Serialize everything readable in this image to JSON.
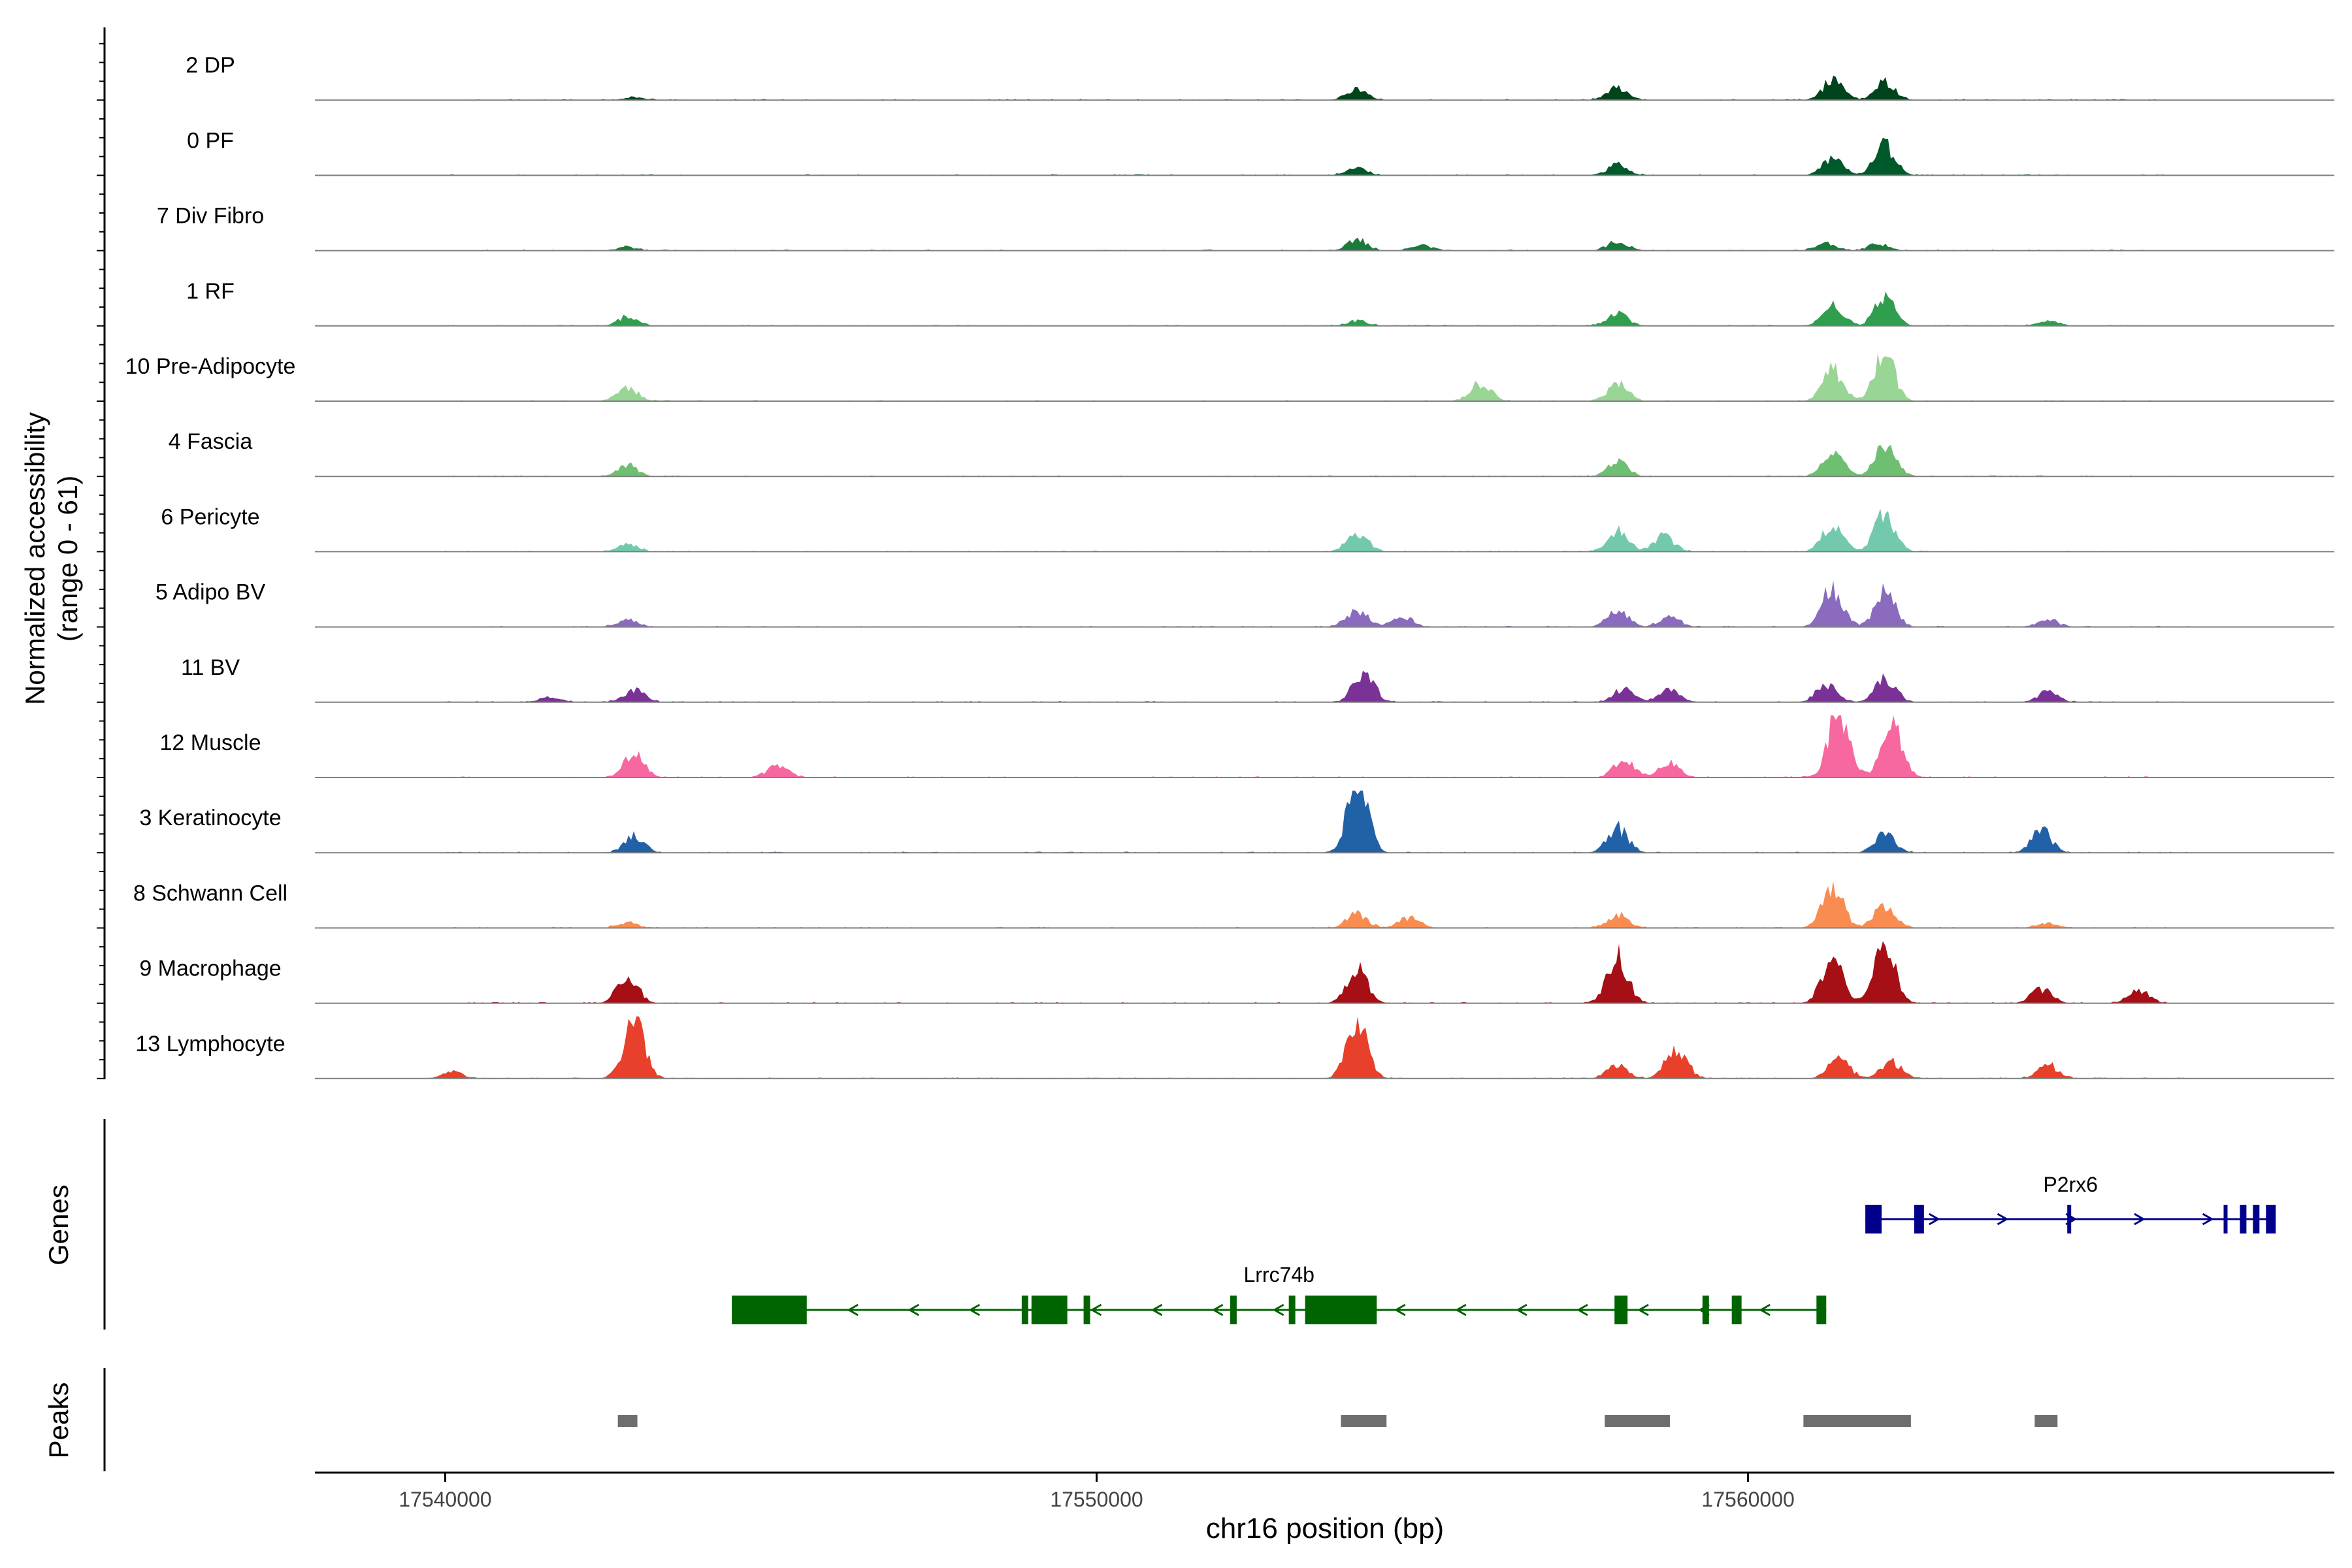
{
  "chart_data": {
    "type": "area",
    "title": "",
    "xlabel": "chr16 position (bp)",
    "ylabel": [
      "Normalized accessibility",
      "(range 0 - 61)"
    ],
    "ylim": [
      0,
      61
    ],
    "xlim": [
      17538000,
      17569000
    ],
    "x_ticks": [
      17540000,
      17550000,
      17560000
    ],
    "x_tick_labels": [
      "17540000",
      "17550000",
      "17560000"
    ],
    "tracks": [
      {
        "name": "2 DP",
        "color": "#00441b",
        "peaks": [
          [
            17542900,
            1.5
          ],
          [
            17554000,
            7
          ],
          [
            17558000,
            7
          ],
          [
            17561300,
            11
          ],
          [
            17562100,
            10
          ]
        ]
      },
      {
        "name": "0 PF",
        "color": "#00592b",
        "peaks": [
          [
            17554000,
            4
          ],
          [
            17558000,
            6
          ],
          [
            17561300,
            10
          ],
          [
            17562100,
            17
          ]
        ]
      },
      {
        "name": "7 Div Fibro",
        "color": "#1a7a3a",
        "peaks": [
          [
            17542800,
            2
          ],
          [
            17554000,
            6
          ],
          [
            17555000,
            3
          ],
          [
            17558000,
            5
          ],
          [
            17561200,
            4
          ],
          [
            17562000,
            4
          ]
        ]
      },
      {
        "name": "1 RF",
        "color": "#2f9e4f",
        "peaks": [
          [
            17542800,
            5
          ],
          [
            17554000,
            3
          ],
          [
            17558000,
            7
          ],
          [
            17561300,
            11
          ],
          [
            17562100,
            16
          ],
          [
            17564600,
            3
          ]
        ]
      },
      {
        "name": "10 Pre-Adipocyte",
        "color": "#99d595",
        "peaks": [
          [
            17542800,
            8
          ],
          [
            17555900,
            10
          ],
          [
            17558000,
            10
          ],
          [
            17561300,
            18
          ],
          [
            17562100,
            26
          ]
        ]
      },
      {
        "name": "4 Fascia",
        "color": "#6fbf72",
        "peaks": [
          [
            17542800,
            6
          ],
          [
            17558000,
            8
          ],
          [
            17561300,
            16
          ],
          [
            17562100,
            18
          ]
        ]
      },
      {
        "name": "6 Pericyte",
        "color": "#73c9ad",
        "peaks": [
          [
            17542800,
            4
          ],
          [
            17554000,
            11
          ],
          [
            17558000,
            12
          ],
          [
            17558700,
            9
          ],
          [
            17561300,
            16
          ],
          [
            17562100,
            22
          ]
        ]
      },
      {
        "name": "5 Adipo BV",
        "color": "#8b6bbd",
        "peaks": [
          [
            17542800,
            4
          ],
          [
            17554000,
            10
          ],
          [
            17554700,
            6
          ],
          [
            17558000,
            10
          ],
          [
            17558800,
            6
          ],
          [
            17561300,
            22
          ],
          [
            17562100,
            20
          ],
          [
            17564600,
            4
          ]
        ]
      },
      {
        "name": "11 BV",
        "color": "#7b3296",
        "peaks": [
          [
            17541600,
            3
          ],
          [
            17542900,
            7
          ],
          [
            17554100,
            18
          ],
          [
            17558100,
            8
          ],
          [
            17558800,
            7
          ],
          [
            17561200,
            10
          ],
          [
            17562100,
            14
          ],
          [
            17564600,
            6
          ]
        ]
      },
      {
        "name": "12 Muscle",
        "color": "#f768a1",
        "peaks": [
          [
            17542900,
            14
          ],
          [
            17545100,
            7
          ],
          [
            17558100,
            10
          ],
          [
            17558800,
            8
          ],
          [
            17561400,
            40
          ],
          [
            17562200,
            34
          ]
        ]
      },
      {
        "name": "3 Keratinocyte",
        "color": "#2161a8",
        "peaks": [
          [
            17542900,
            9
          ],
          [
            17554000,
            42
          ],
          [
            17558000,
            14
          ],
          [
            17562100,
            10
          ],
          [
            17564500,
            13
          ]
        ]
      },
      {
        "name": "8 Schwann Cell",
        "color": "#f88c51",
        "peaks": [
          [
            17542800,
            3
          ],
          [
            17554000,
            8
          ],
          [
            17554800,
            6
          ],
          [
            17558000,
            8
          ],
          [
            17561300,
            25
          ],
          [
            17562100,
            14
          ],
          [
            17564600,
            3
          ]
        ]
      },
      {
        "name": "9 Macrophage",
        "color": "#a50f15",
        "peaks": [
          [
            17542800,
            16
          ],
          [
            17554000,
            20
          ],
          [
            17558000,
            26
          ],
          [
            17561300,
            28
          ],
          [
            17562100,
            34
          ],
          [
            17564500,
            8
          ],
          [
            17566000,
            8
          ]
        ]
      },
      {
        "name": "13 Lymphocyte",
        "color": "#e8402a",
        "peaks": [
          [
            17540100,
            4
          ],
          [
            17542900,
            36
          ],
          [
            17554000,
            32
          ],
          [
            17558000,
            8
          ],
          [
            17558900,
            18
          ],
          [
            17561400,
            12
          ],
          [
            17562200,
            10
          ],
          [
            17564600,
            8
          ]
        ]
      }
    ],
    "genes_label": "Genes",
    "genes": [
      {
        "name": "P2rx6",
        "strand": "+",
        "color": "#00008b",
        "start": 17561800,
        "end": 17568100,
        "exons": [
          [
            17561800,
            17562050
          ],
          [
            17562550,
            17562700
          ],
          [
            17564900,
            17564950
          ],
          [
            17567300,
            17567350
          ],
          [
            17567550,
            17567650
          ],
          [
            17567750,
            17567850
          ],
          [
            17567950,
            17568100
          ]
        ]
      },
      {
        "name": "Lrrc74b",
        "strand": "-",
        "color": "#006400",
        "start": 17544400,
        "end": 17561200,
        "exons": [
          [
            17544400,
            17545550
          ],
          [
            17548850,
            17548950
          ],
          [
            17549000,
            17549550
          ],
          [
            17549800,
            17549900
          ],
          [
            17552050,
            17552150
          ],
          [
            17552950,
            17553050
          ],
          [
            17553200,
            17554300
          ],
          [
            17557950,
            17558150
          ],
          [
            17559300,
            17559400
          ],
          [
            17559750,
            17559900
          ],
          [
            17561050,
            17561200
          ]
        ]
      }
    ],
    "peaks_label": "Peaks",
    "peak_regions": [
      [
        17542650,
        17542950
      ],
      [
        17553750,
        17554450
      ],
      [
        17557800,
        17558800
      ],
      [
        17560850,
        17562500
      ],
      [
        17564400,
        17564750
      ]
    ],
    "peak_color": "#6e6e6e"
  }
}
